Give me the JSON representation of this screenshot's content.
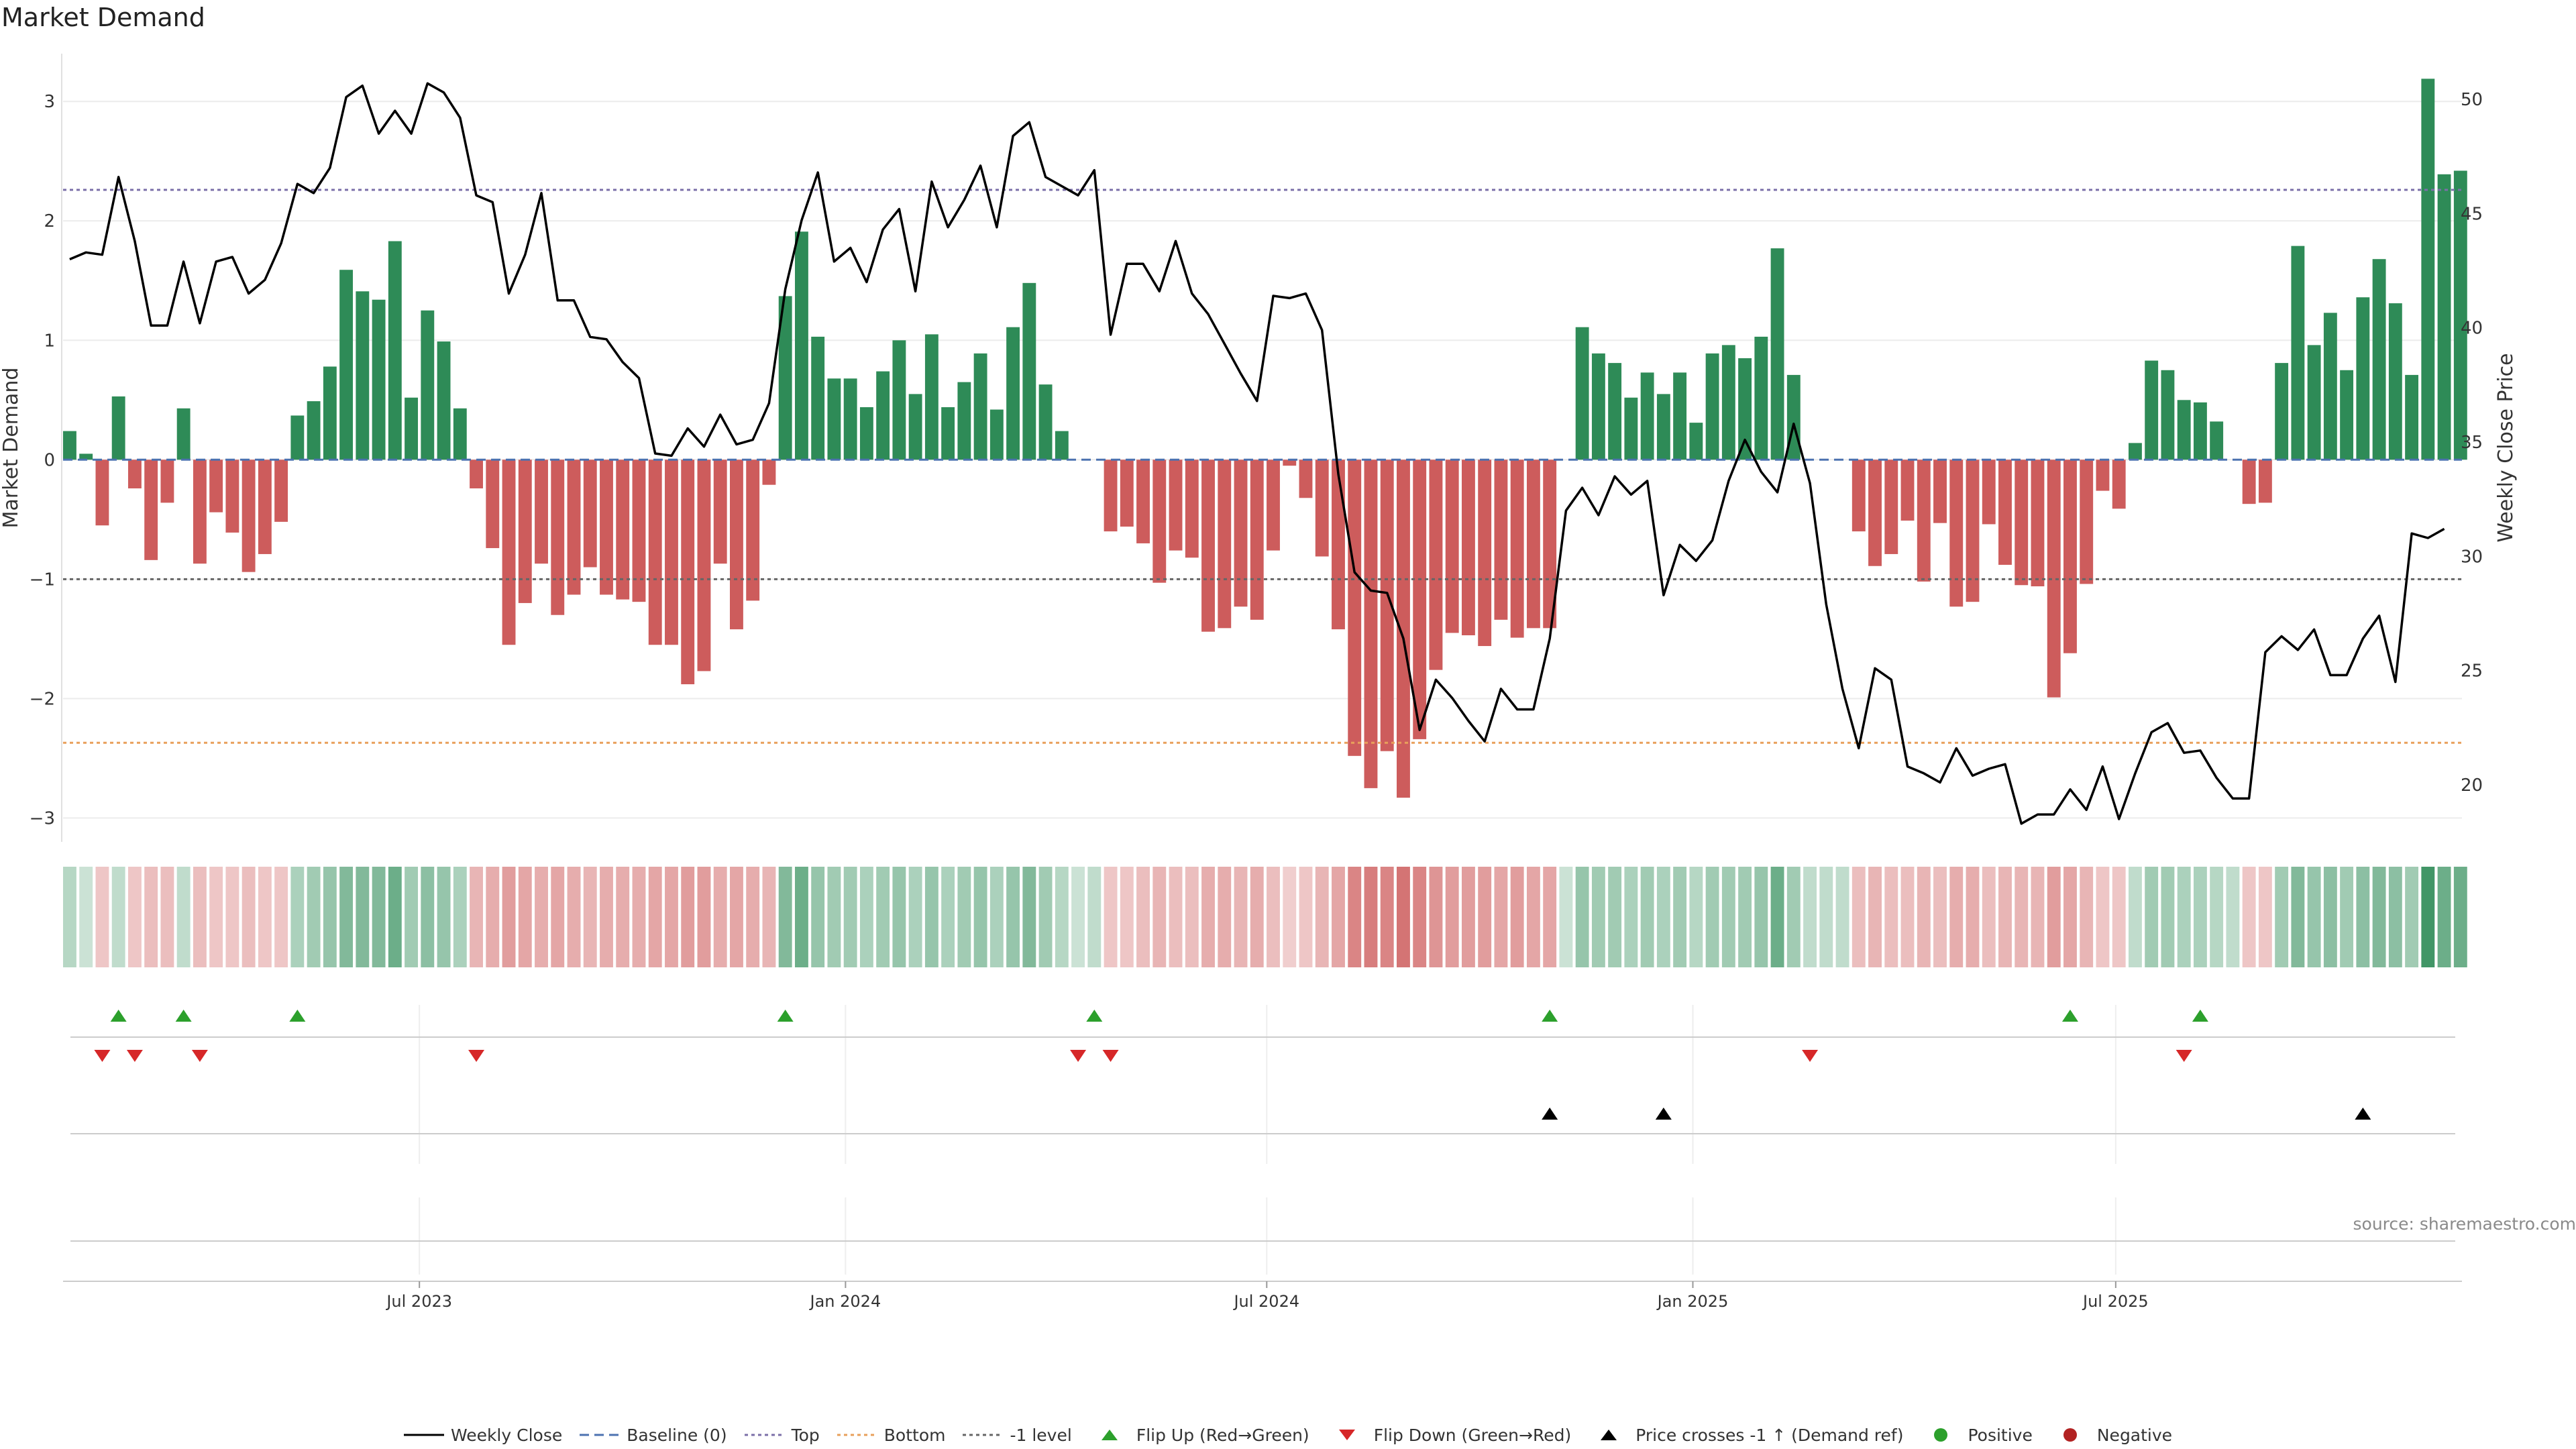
{
  "title": "Market Demand",
  "source": "source: sharemaestro.com",
  "colors": {
    "positive": "#2e8b57",
    "negative": "#cd5c5c",
    "price_line": "#000000",
    "baseline": "#4c72b0",
    "top": "#7b6fa8",
    "bottom": "#e8a05b",
    "minus_one": "#666666",
    "flip_up": "#2ca02c",
    "flip_down": "#d62728",
    "dot_positive": "#2ca02c",
    "dot_negative": "#b22222"
  },
  "legend": [
    {
      "key": "weekly_close",
      "label": "Weekly Close"
    },
    {
      "key": "baseline",
      "label": "Baseline (0)"
    },
    {
      "key": "top",
      "label": "Top"
    },
    {
      "key": "bottom",
      "label": "Bottom"
    },
    {
      "key": "minus_one",
      "label": "-1 level"
    },
    {
      "key": "flip_up",
      "label": "Flip Up (Red→Green)"
    },
    {
      "key": "flip_down",
      "label": "Flip Down (Green→Red)"
    },
    {
      "key": "cross",
      "label": "Price crosses -1 ↑ (Demand ref)"
    },
    {
      "key": "positive",
      "label": "Positive"
    },
    {
      "key": "negative",
      "label": "Negative"
    }
  ],
  "chart_data": {
    "type": "bar",
    "title": "Market Demand",
    "ylabel": "Market Demand",
    "y2label": "Weekly Close Price",
    "ylim": [
      -3.2,
      3.4
    ],
    "y2lim": [
      17.5,
      52
    ],
    "yticks": [
      -3,
      -2,
      -1,
      0,
      1,
      2,
      3
    ],
    "ytick_labels": [
      "−3",
      "−2",
      "−1",
      "0",
      "1",
      "2",
      "3"
    ],
    "y2ticks": [
      20,
      25,
      30,
      35,
      40,
      45,
      50
    ],
    "y2tick_labels": [
      "20",
      "25",
      "30",
      "35",
      "40",
      "45",
      "50"
    ],
    "reference_lines": {
      "baseline": 0,
      "top": 2.26,
      "bottom": -2.37,
      "minus_one": -1
    },
    "x_ticks": [
      {
        "index": 21.5,
        "label": "Jul 2023"
      },
      {
        "index": 47.7,
        "label": "Jan 2024"
      },
      {
        "index": 73.6,
        "label": "Jul 2024"
      },
      {
        "index": 99.8,
        "label": "Jan 2025"
      },
      {
        "index": 125.8,
        "label": "Jul 2025"
      }
    ],
    "demand": [
      0.24,
      0.05,
      -0.55,
      0.53,
      -0.24,
      -0.84,
      -0.36,
      0.43,
      -0.87,
      -0.44,
      -0.61,
      -0.94,
      -0.79,
      -0.52,
      0.37,
      0.49,
      0.78,
      1.59,
      1.41,
      1.34,
      1.83,
      0.52,
      1.25,
      0.99,
      0.43,
      -0.24,
      -0.74,
      -1.55,
      -1.2,
      -0.87,
      -1.3,
      -1.13,
      -0.9,
      -1.13,
      -1.17,
      -1.19,
      -1.55,
      -1.55,
      -1.88,
      -1.77,
      -0.87,
      -1.42,
      -1.18,
      -0.21,
      1.37,
      1.91,
      1.03,
      0.68,
      0.68,
      0.44,
      0.74,
      1.0,
      0.55,
      1.05,
      0.44,
      0.65,
      0.89,
      0.42,
      1.11,
      1.48,
      0.63,
      0.24,
      0,
      0,
      -0.6,
      -0.56,
      -0.7,
      -1.03,
      -0.76,
      -0.82,
      -1.44,
      -1.41,
      -1.23,
      -1.34,
      -0.76,
      -0.05,
      -0.32,
      -0.81,
      -1.42,
      -2.48,
      -2.75,
      -2.44,
      -2.83,
      -2.34,
      -1.76,
      -1.45,
      -1.47,
      -1.56,
      -1.34,
      -1.49,
      -1.41,
      -1.41,
      0,
      1.11,
      0.89,
      0.81,
      0.52,
      0.73,
      0.55,
      0.73,
      0.31,
      0.89,
      0.96,
      0.85,
      1.03,
      1.77,
      0.71,
      0,
      0,
      0,
      -0.6,
      -0.89,
      -0.79,
      -0.51,
      -1.02,
      -0.53,
      -1.23,
      -1.19,
      -0.54,
      -0.88,
      -1.05,
      -1.06,
      -1.99,
      -1.62,
      -1.04,
      -0.26,
      -0.41,
      0.14,
      0.83,
      0.75,
      0.5,
      0.48,
      0.32,
      0,
      -0.37,
      -0.36,
      0.81,
      1.79,
      0.96,
      1.23,
      0.75,
      1.36,
      1.68,
      1.31,
      0.71,
      3.19,
      2.39,
      2.42
    ],
    "price": [
      43,
      43.3,
      43.2,
      46.6,
      43.8,
      40.1,
      40.1,
      42.9,
      40.2,
      42.9,
      43.1,
      41.5,
      42.1,
      43.7,
      46.3,
      45.9,
      47,
      50.1,
      50.6,
      48.5,
      49.5,
      48.5,
      50.7,
      50.3,
      49.2,
      45.8,
      45.5,
      41.5,
      43.2,
      45.9,
      41.2,
      41.2,
      39.6,
      39.5,
      38.5,
      37.8,
      34.5,
      34.4,
      35.6,
      34.8,
      36.2,
      34.9,
      35.1,
      36.7,
      41.7,
      44.7,
      46.8,
      42.9,
      43.5,
      42,
      44.3,
      45.2,
      41.6,
      46.4,
      44.4,
      45.6,
      47.1,
      44.4,
      48.4,
      49,
      46.6,
      46.2,
      45.8,
      46.9,
      39.7,
      42.8,
      42.8,
      41.6,
      43.8,
      41.5,
      40.6,
      39.3,
      38,
      36.8,
      41.4,
      41.3,
      41.5,
      39.9,
      33.6,
      29.3,
      28.5,
      28.4,
      26.4,
      22.4,
      24.6,
      23.8,
      22.8,
      21.9,
      24.2,
      23.3,
      23.3,
      26.4,
      32,
      33,
      31.8,
      33.5,
      32.7,
      33.3,
      28.3,
      30.5,
      29.8,
      30.7,
      33.3,
      35.1,
      33.7,
      32.8,
      35.8,
      33.2,
      27.9,
      24.2,
      21.6,
      25.1,
      24.6,
      20.8,
      20.5,
      20.1,
      21.6,
      20.4,
      20.7,
      20.9,
      18.3,
      18.7,
      18.7,
      19.8,
      18.9,
      20.8,
      18.5,
      20.5,
      22.3,
      22.7,
      21.4,
      21.5,
      20.3,
      19.4,
      19.4,
      25.8,
      26.5,
      25.9,
      26.8,
      24.8,
      24.8,
      26.4,
      27.4,
      24.5,
      31,
      30.8,
      31.2
    ],
    "shade_opacity": [
      0.35,
      0.25,
      0.35,
      0.3,
      0.35,
      0.4,
      0.4,
      0.3,
      0.4,
      0.35,
      0.35,
      0.4,
      0.35,
      0.35,
      0.4,
      0.45,
      0.5,
      0.6,
      0.6,
      0.6,
      0.7,
      0.45,
      0.55,
      0.5,
      0.4,
      0.45,
      0.5,
      0.6,
      0.55,
      0.5,
      0.55,
      0.5,
      0.45,
      0.5,
      0.5,
      0.5,
      0.55,
      0.55,
      0.6,
      0.6,
      0.5,
      0.55,
      0.5,
      0.45,
      0.6,
      0.7,
      0.5,
      0.45,
      0.45,
      0.4,
      0.45,
      0.5,
      0.4,
      0.5,
      0.4,
      0.45,
      0.5,
      0.4,
      0.5,
      0.6,
      0.45,
      0.35,
      0.25,
      0.3,
      0.35,
      0.35,
      0.4,
      0.45,
      0.4,
      0.4,
      0.5,
      0.5,
      0.45,
      0.5,
      0.4,
      0.3,
      0.35,
      0.45,
      0.55,
      0.75,
      0.8,
      0.75,
      0.85,
      0.75,
      0.65,
      0.6,
      0.6,
      0.6,
      0.55,
      0.6,
      0.55,
      0.55,
      0.25,
      0.5,
      0.45,
      0.45,
      0.4,
      0.45,
      0.4,
      0.45,
      0.35,
      0.45,
      0.45,
      0.45,
      0.5,
      0.7,
      0.45,
      0.3,
      0.3,
      0.3,
      0.4,
      0.45,
      0.4,
      0.4,
      0.45,
      0.4,
      0.5,
      0.5,
      0.4,
      0.45,
      0.45,
      0.45,
      0.6,
      0.55,
      0.45,
      0.35,
      0.35,
      0.3,
      0.45,
      0.45,
      0.4,
      0.4,
      0.35,
      0.3,
      0.35,
      0.35,
      0.45,
      0.6,
      0.5,
      0.55,
      0.45,
      0.55,
      0.6,
      0.55,
      0.45,
      0.9,
      0.7,
      0.7
    ],
    "flip_up_indices": [
      3,
      7,
      14,
      44,
      63,
      91,
      123,
      131
    ],
    "flip_down_indices": [
      2,
      4,
      8,
      25,
      62,
      64,
      107,
      130
    ],
    "cross_indices": [
      91,
      98,
      141
    ]
  }
}
